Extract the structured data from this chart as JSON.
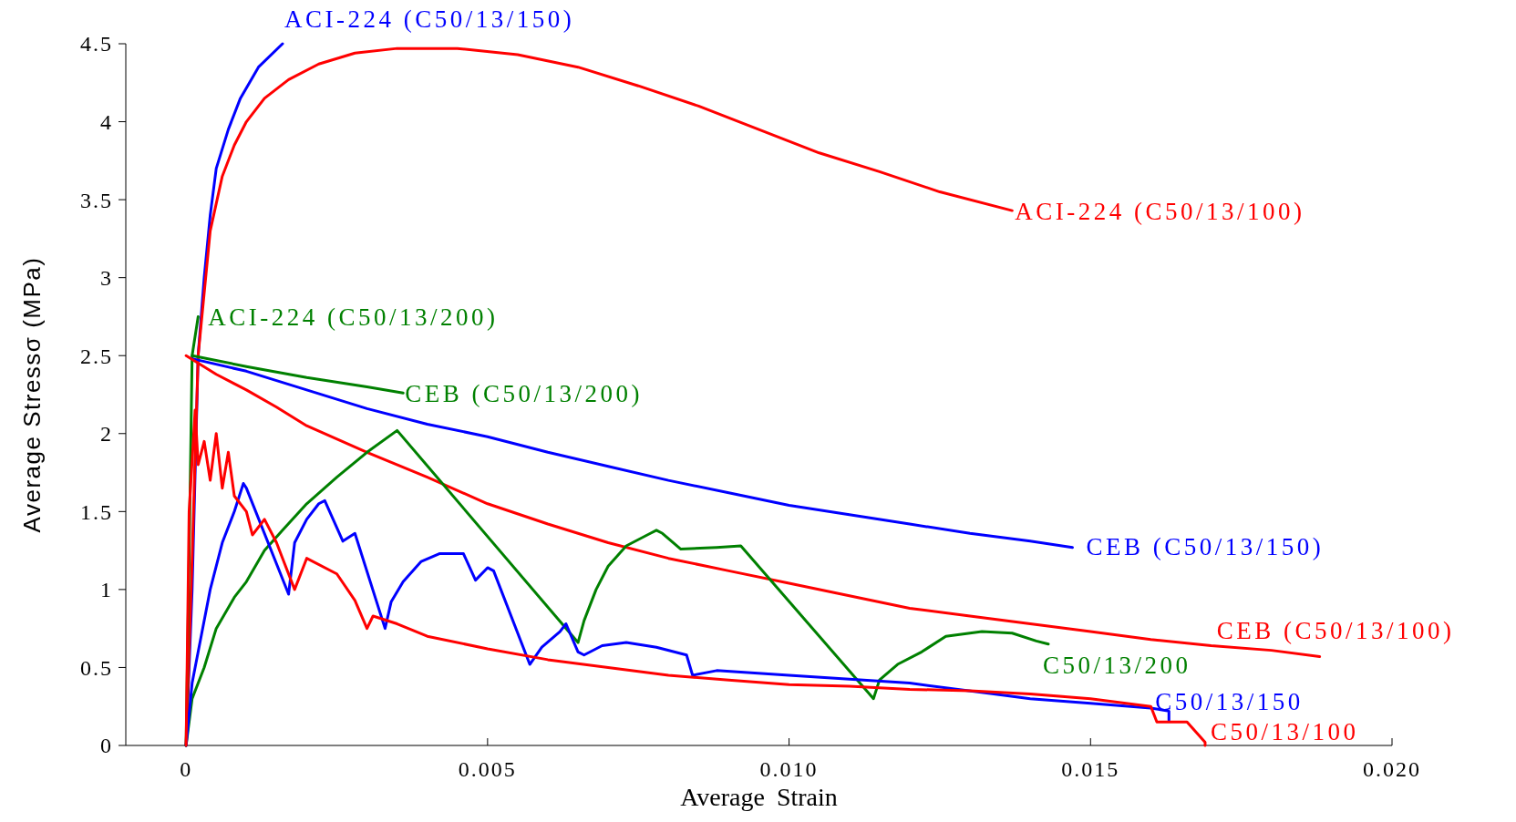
{
  "chart_data": {
    "type": "line",
    "xlabel": "Average Strain",
    "ylabel": "Average Stressσ  (MPa)",
    "xlim": [
      -0.001,
      0.02
    ],
    "ylim": [
      0,
      4.5
    ],
    "xticks": [
      0,
      0.005,
      {
        "value": 0.01,
        "label": "0.010"
      },
      0.015,
      {
        "value": 0.02,
        "label": "0.020"
      }
    ],
    "yticks": [
      0,
      0.5,
      1,
      1.5,
      2,
      2.5,
      3,
      3.5,
      4,
      4.5
    ],
    "grid": false,
    "legend": false,
    "marker": "none",
    "line_style": "solid",
    "series": [
      {
        "name": "ACI-224 (C50/13/150)",
        "color": "#0000ff",
        "x": [
          0,
          0.0001,
          0.0002,
          0.0003,
          0.0004,
          0.0005,
          0.0007,
          0.0009,
          0.0012,
          0.0016
        ],
        "values": [
          0,
          1.0,
          2.5,
          3.0,
          3.4,
          3.7,
          3.95,
          4.15,
          4.35,
          4.5
        ]
      },
      {
        "name": "ACI-224 (C50/13/100)",
        "color": "#ff0000",
        "x": [
          0,
          0.0001,
          0.0002,
          0.0004,
          0.0006,
          0.0008,
          0.001,
          0.0013,
          0.0017,
          0.0022,
          0.0028,
          0.0035,
          0.0045,
          0.0055,
          0.0065,
          0.0075,
          0.0085,
          0.0095,
          0.0105,
          0.0115,
          0.0125,
          0.0137
        ],
        "values": [
          0,
          1.2,
          2.5,
          3.3,
          3.65,
          3.85,
          4.0,
          4.15,
          4.27,
          4.37,
          4.44,
          4.47,
          4.47,
          4.43,
          4.35,
          4.23,
          4.1,
          3.95,
          3.8,
          3.68,
          3.55,
          3.43
        ]
      },
      {
        "name": "ACI-224 (C50/13/200)",
        "color": "#008000",
        "x": [
          0,
          5e-05,
          0.0001,
          0.0002
        ],
        "values": [
          0,
          1.2,
          2.5,
          2.75
        ]
      },
      {
        "name": "CEB (C50/13/200)",
        "color": "#008000",
        "x": [
          0.0001,
          0.001,
          0.002,
          0.003,
          0.0036
        ],
        "values": [
          2.5,
          2.43,
          2.36,
          2.3,
          2.26
        ]
      },
      {
        "name": "CEB (C50/13/150)",
        "color": "#0000ff",
        "x": [
          0.0001,
          0.001,
          0.002,
          0.003,
          0.004,
          0.005,
          0.006,
          0.007,
          0.008,
          0.009,
          0.01,
          0.011,
          0.012,
          0.013,
          0.014,
          0.0147
        ],
        "values": [
          2.48,
          2.4,
          2.28,
          2.16,
          2.06,
          1.98,
          1.88,
          1.79,
          1.7,
          1.62,
          1.54,
          1.48,
          1.42,
          1.36,
          1.31,
          1.27
        ]
      },
      {
        "name": "CEB (C50/13/100)",
        "color": "#ff0000",
        "x": [
          0,
          0.0005,
          0.001,
          0.0015,
          0.002,
          0.003,
          0.004,
          0.005,
          0.006,
          0.007,
          0.008,
          0.009,
          0.01,
          0.011,
          0.012,
          0.013,
          0.014,
          0.015,
          0.016,
          0.017,
          0.018,
          0.0188
        ],
        "values": [
          2.5,
          2.38,
          2.28,
          2.17,
          2.05,
          1.88,
          1.72,
          1.55,
          1.42,
          1.3,
          1.2,
          1.12,
          1.04,
          0.96,
          0.88,
          0.83,
          0.78,
          0.73,
          0.68,
          0.64,
          0.61,
          0.57
        ]
      },
      {
        "name": "C50/13/200",
        "color": "#008000",
        "x": [
          0,
          0.0001,
          0.0003,
          0.0005,
          0.0008,
          0.001,
          0.0013,
          0.0016,
          0.002,
          0.0025,
          0.003,
          0.0035,
          0.0065,
          0.0066,
          0.0068,
          0.007,
          0.0073,
          0.0077,
          0.0078,
          0.0079,
          0.0082,
          0.0088,
          0.0092,
          0.0114,
          0.0115,
          0.0118,
          0.0122,
          0.0126,
          0.0132,
          0.0137,
          0.0141,
          0.0143
        ],
        "values": [
          0,
          0.3,
          0.5,
          0.75,
          0.95,
          1.05,
          1.25,
          1.38,
          1.55,
          1.72,
          1.88,
          2.02,
          0.66,
          0.8,
          1.0,
          1.15,
          1.28,
          1.36,
          1.38,
          1.36,
          1.26,
          1.27,
          1.28,
          0.3,
          0.42,
          0.52,
          0.6,
          0.7,
          0.73,
          0.72,
          0.67,
          0.65
        ]
      },
      {
        "name": "C50/13/150",
        "color": "#0000ff",
        "x": [
          0,
          0.0001,
          0.0002,
          0.0004,
          0.0006,
          0.0008,
          0.00095,
          0.001,
          0.0017,
          0.0018,
          0.002,
          0.0022,
          0.0023,
          0.0026,
          0.0028,
          0.0033,
          0.0034,
          0.0036,
          0.0039,
          0.0042,
          0.0046,
          0.0048,
          0.005,
          0.0051,
          0.0057,
          0.0059,
          0.0062,
          0.0063,
          0.0065,
          0.0066,
          0.0069,
          0.0073,
          0.0078,
          0.0083,
          0.0084,
          0.0088,
          0.01,
          0.012,
          0.014,
          0.015,
          0.016,
          0.0163,
          0.0163
        ],
        "values": [
          0,
          0.4,
          0.6,
          1.0,
          1.3,
          1.5,
          1.68,
          1.65,
          0.97,
          1.3,
          1.45,
          1.55,
          1.57,
          1.31,
          1.36,
          0.75,
          0.92,
          1.05,
          1.18,
          1.23,
          1.23,
          1.06,
          1.14,
          1.12,
          0.52,
          0.63,
          0.73,
          0.78,
          0.6,
          0.58,
          0.64,
          0.66,
          0.63,
          0.58,
          0.45,
          0.48,
          0.45,
          0.4,
          0.3,
          0.27,
          0.24,
          0.22,
          0.16
        ]
      },
      {
        "name": "C50/13/100",
        "color": "#ff0000",
        "x": [
          0,
          5e-05,
          0.00015,
          0.0002,
          0.0003,
          0.0004,
          0.0005,
          0.0006,
          0.0007,
          0.0008,
          0.001,
          0.0011,
          0.0013,
          0.0015,
          0.0016,
          0.0018,
          0.002,
          0.0025,
          0.0028,
          0.003,
          0.0031,
          0.0035,
          0.004,
          0.005,
          0.006,
          0.007,
          0.008,
          0.009,
          0.01,
          0.011,
          0.012,
          0.013,
          0.014,
          0.015,
          0.016,
          0.0161,
          0.0166,
          0.0169,
          0.0169
        ],
        "values": [
          0,
          1.5,
          2.15,
          1.8,
          1.95,
          1.7,
          2.0,
          1.65,
          1.88,
          1.6,
          1.5,
          1.35,
          1.45,
          1.3,
          1.2,
          1.0,
          1.2,
          1.1,
          0.93,
          0.75,
          0.83,
          0.78,
          0.7,
          0.62,
          0.55,
          0.5,
          0.45,
          0.42,
          0.39,
          0.38,
          0.36,
          0.35,
          0.33,
          0.3,
          0.25,
          0.15,
          0.15,
          0.02,
          0
        ]
      }
    ]
  }
}
